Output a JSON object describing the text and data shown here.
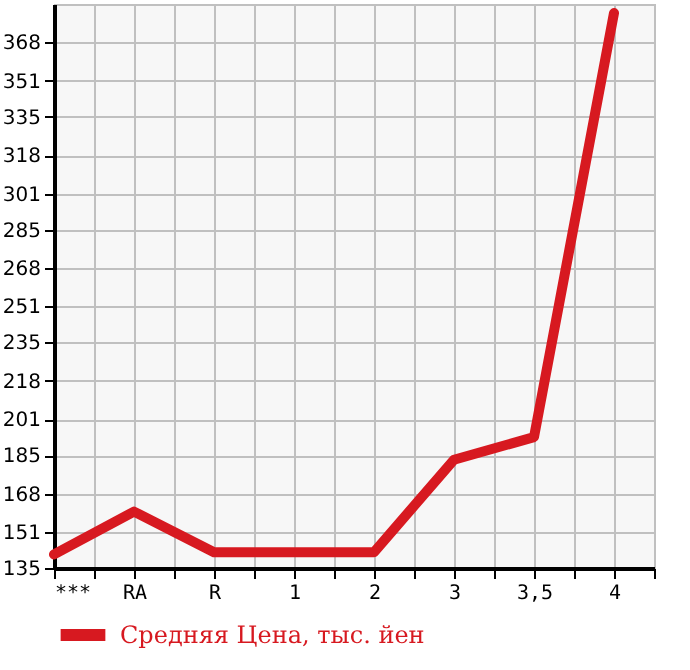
{
  "chart_data": {
    "type": "line",
    "categories": [
      "***",
      "RA",
      "R",
      "1",
      "2",
      "3",
      "3,5",
      "4"
    ],
    "series": [
      {
        "name": "Средняя Цена, тыс. йен",
        "color": "#d71920",
        "values": [
          141,
          160,
          142,
          142,
          142,
          183,
          193,
          381
        ]
      }
    ],
    "ylim": [
      135,
      385
    ],
    "yticks": [
      135,
      151,
      168,
      185,
      201,
      218,
      235,
      251,
      268,
      285,
      301,
      318,
      335,
      351,
      368
    ],
    "grid": true,
    "legend": "bottom",
    "marker": "none",
    "line_style": "solid"
  }
}
